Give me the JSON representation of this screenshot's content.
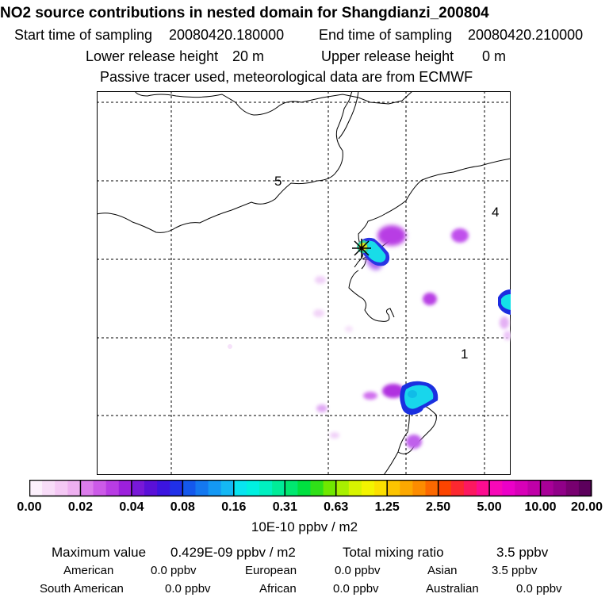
{
  "title": "NO2 source contributions in nested domain for Shangdianzi_200804",
  "header": {
    "start_label": "Start time of sampling",
    "start_value": "20080420.180000",
    "end_label": "End time of sampling",
    "end_value": "20080420.210000",
    "lower_label": "Lower release height",
    "lower_value": "20 m",
    "upper_label": "Upper release height",
    "upper_value": "0 m",
    "tracer_note": "Passive tracer used, meteorological data are from ECMWF"
  },
  "map": {
    "region_labels": [
      "5",
      "4",
      "1"
    ],
    "colors": {
      "outline": "#000000",
      "grid": "#000000"
    }
  },
  "colorbar": {
    "ticks": [
      "0.00",
      "0.02",
      "0.04",
      "0.08",
      "0.16",
      "0.31",
      "0.63",
      "1.25",
      "2.50",
      "5.00",
      "10.00",
      "20.00"
    ],
    "colors": [
      "#fcf0fc",
      "#f8dcf8",
      "#f4c8f4",
      "#eeb0f0",
      "#dc7cec",
      "#cc5ae8",
      "#b83ce4",
      "#9c20dc",
      "#7818d8",
      "#5a10d8",
      "#3c14e0",
      "#2030e8",
      "#1458ec",
      "#1478f0",
      "#1498f4",
      "#14b8f4",
      "#08e4f0",
      "#00f0e0",
      "#00f0c0",
      "#00ec98",
      "#00e870",
      "#00e040",
      "#30e018",
      "#70e800",
      "#a8f000",
      "#d8f400",
      "#f4f400",
      "#fce000",
      "#fcc400",
      "#fca800",
      "#fc8c00",
      "#fc6800",
      "#fc4400",
      "#fc2830",
      "#fc1860",
      "#fc0c90",
      "#f808b8",
      "#ec00c8",
      "#d800b8",
      "#c000a8",
      "#a80098",
      "#900088",
      "#780070",
      "#5c005c"
    ],
    "units": "10E-10 ppbv / m2"
  },
  "stats": {
    "max_label": "Maximum value",
    "max_value": "0.429E-09 ppbv / m2",
    "total_label": "Total mixing ratio",
    "total_value": "3.5 ppbv",
    "american_label": "American",
    "american_value": "0.0 ppbv",
    "european_label": "European",
    "european_value": "0.0 ppbv",
    "asian_label": "Asian",
    "asian_value": "3.5 ppbv",
    "south_american_label": "South American",
    "south_american_value": "0.0 ppbv",
    "african_label": "African",
    "african_value": "0.0 ppbv",
    "australian_label": "Australian",
    "australian_value": "0.0 ppbv"
  }
}
